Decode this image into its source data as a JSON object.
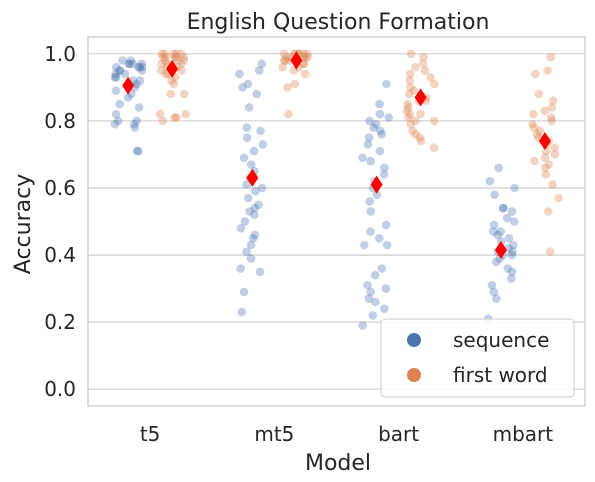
{
  "chart_data": {
    "type": "scatter",
    "title": "English Question Formation",
    "xlabel": "Model",
    "ylabel": "Accuracy",
    "categories": [
      "t5",
      "mt5",
      "bart",
      "mbart"
    ],
    "ylim": [
      -0.05,
      1.05
    ],
    "yticks": [
      "0.0",
      "0.2",
      "0.4",
      "0.6",
      "0.8",
      "1.0"
    ],
    "grid": "horizontal",
    "legend_position": "lower-right",
    "colors": {
      "sequence": "#4c72b0",
      "first_word": "#dd8452",
      "mean_marker": "#ff0000",
      "grid": "#d4d4d4",
      "frame": "#cccccc"
    },
    "series": [
      {
        "name": "sequence",
        "points": {
          "t5": [
            0.98,
            0.98,
            0.97,
            0.97,
            0.97,
            0.97,
            0.96,
            0.96,
            0.96,
            0.96,
            0.95,
            0.95,
            0.95,
            0.94,
            0.94,
            0.93,
            0.93,
            0.92,
            0.92,
            0.91,
            0.9,
            0.89,
            0.88,
            0.87,
            0.85,
            0.84,
            0.82,
            0.8,
            0.8,
            0.79,
            0.79,
            0.78,
            0.71,
            0.71
          ],
          "mt5": [
            0.97,
            0.95,
            0.94,
            0.91,
            0.9,
            0.88,
            0.84,
            0.78,
            0.77,
            0.75,
            0.73,
            0.71,
            0.69,
            0.67,
            0.65,
            0.63,
            0.61,
            0.6,
            0.59,
            0.57,
            0.55,
            0.54,
            0.53,
            0.52,
            0.5,
            0.48,
            0.46,
            0.45,
            0.43,
            0.41,
            0.39,
            0.36,
            0.35,
            0.29,
            0.23
          ],
          "bart": [
            0.91,
            0.85,
            0.82,
            0.81,
            0.8,
            0.79,
            0.78,
            0.77,
            0.76,
            0.75,
            0.73,
            0.71,
            0.69,
            0.68,
            0.66,
            0.64,
            0.62,
            0.6,
            0.58,
            0.56,
            0.53,
            0.49,
            0.47,
            0.45,
            0.43,
            0.43,
            0.36,
            0.34,
            0.31,
            0.3,
            0.29,
            0.27,
            0.26,
            0.24,
            0.22,
            0.19
          ],
          "mbart": [
            0.66,
            0.62,
            0.6,
            0.58,
            0.54,
            0.54,
            0.53,
            0.51,
            0.5,
            0.49,
            0.47,
            0.47,
            0.46,
            0.45,
            0.44,
            0.43,
            0.42,
            0.42,
            0.41,
            0.41,
            0.4,
            0.4,
            0.39,
            0.38,
            0.36,
            0.35,
            0.33,
            0.31,
            0.29,
            0.27,
            0.21
          ]
        },
        "means": {
          "t5": 0.905,
          "mt5": 0.63,
          "bart": 0.61,
          "mbart": 0.415
        }
      },
      {
        "name": "first word",
        "points": {
          "t5": [
            1.0,
            1.0,
            1.0,
            1.0,
            1.0,
            0.99,
            0.99,
            0.99,
            0.99,
            0.99,
            0.98,
            0.98,
            0.98,
            0.97,
            0.97,
            0.97,
            0.96,
            0.96,
            0.95,
            0.95,
            0.94,
            0.94,
            0.93,
            0.92,
            0.91,
            0.88,
            0.88,
            0.82,
            0.82,
            0.81,
            0.81,
            0.8
          ],
          "mt5": [
            1.0,
            1.0,
            1.0,
            1.0,
            1.0,
            1.0,
            1.0,
            0.99,
            0.99,
            0.99,
            0.99,
            0.99,
            0.98,
            0.98,
            0.98,
            0.97,
            0.97,
            0.96,
            0.96,
            0.95,
            0.94,
            0.91,
            0.9,
            0.82
          ],
          "bart": [
            1.0,
            0.99,
            0.97,
            0.96,
            0.95,
            0.94,
            0.93,
            0.92,
            0.91,
            0.9,
            0.89,
            0.88,
            0.87,
            0.86,
            0.86,
            0.85,
            0.84,
            0.83,
            0.82,
            0.82,
            0.81,
            0.8,
            0.8,
            0.79,
            0.77,
            0.76,
            0.75,
            0.74,
            0.72
          ],
          "mbart": [
            0.99,
            0.95,
            0.94,
            0.88,
            0.86,
            0.84,
            0.83,
            0.82,
            0.81,
            0.8,
            0.79,
            0.78,
            0.77,
            0.76,
            0.75,
            0.74,
            0.73,
            0.72,
            0.71,
            0.7,
            0.69,
            0.68,
            0.67,
            0.66,
            0.64,
            0.61,
            0.57,
            0.53,
            0.41
          ]
        },
        "means": {
          "t5": 0.955,
          "mt5": 0.98,
          "bart": 0.87,
          "mbart": 0.74
        }
      }
    ]
  }
}
